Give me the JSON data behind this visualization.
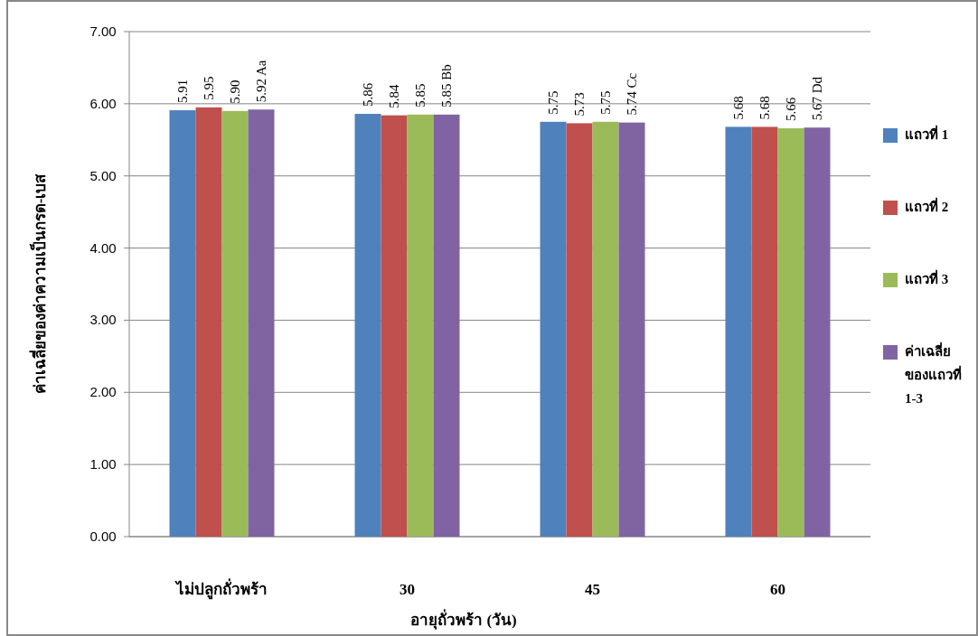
{
  "chart_data": {
    "type": "bar",
    "xlabel": "อายุถั่วพร้า (วัน)",
    "ylabel": "ค่าเฉลี่ยของค่าความเป็นกรด-เบส",
    "categories": [
      "ไม่ปลูกถั่วพร้า",
      "30",
      "45",
      "60"
    ],
    "series": [
      {
        "name": "แถวที่ 1",
        "color": "#4f81bd",
        "values": [
          5.91,
          5.86,
          5.75,
          5.68
        ],
        "value_labels": [
          "5.91",
          "5.86",
          "5.75",
          "5.68"
        ]
      },
      {
        "name": "แถวที่ 2",
        "color": "#c0504d",
        "values": [
          5.95,
          5.84,
          5.73,
          5.68
        ],
        "value_labels": [
          "5.95",
          "5.84",
          "5.73",
          "5.68"
        ]
      },
      {
        "name": "แถวที่ 3",
        "color": "#9bbb59",
        "values": [
          5.9,
          5.85,
          5.75,
          5.66
        ],
        "value_labels": [
          "5.90",
          "5.85",
          "5.75",
          "5.66"
        ]
      },
      {
        "name": "ค่าเฉลี่ยของแถวที่ 1-3",
        "color": "#8064a2",
        "values": [
          5.92,
          5.85,
          5.74,
          5.67
        ],
        "value_labels": [
          "5.92 Aa",
          "5.85 Bb",
          "5.74 Cc",
          "5.67 Dd"
        ]
      }
    ],
    "ylim": [
      0,
      7
    ],
    "yticks": [
      {
        "value": 0,
        "label": "0.00"
      },
      {
        "value": 1,
        "label": "1.00"
      },
      {
        "value": 2,
        "label": "2.00"
      },
      {
        "value": 3,
        "label": "3.00"
      },
      {
        "value": 4,
        "label": "4.00"
      },
      {
        "value": 5,
        "label": "5.00"
      },
      {
        "value": 6,
        "label": "6.00"
      },
      {
        "value": 7,
        "label": "7.00"
      }
    ],
    "grid": "y",
    "legend": "right"
  }
}
